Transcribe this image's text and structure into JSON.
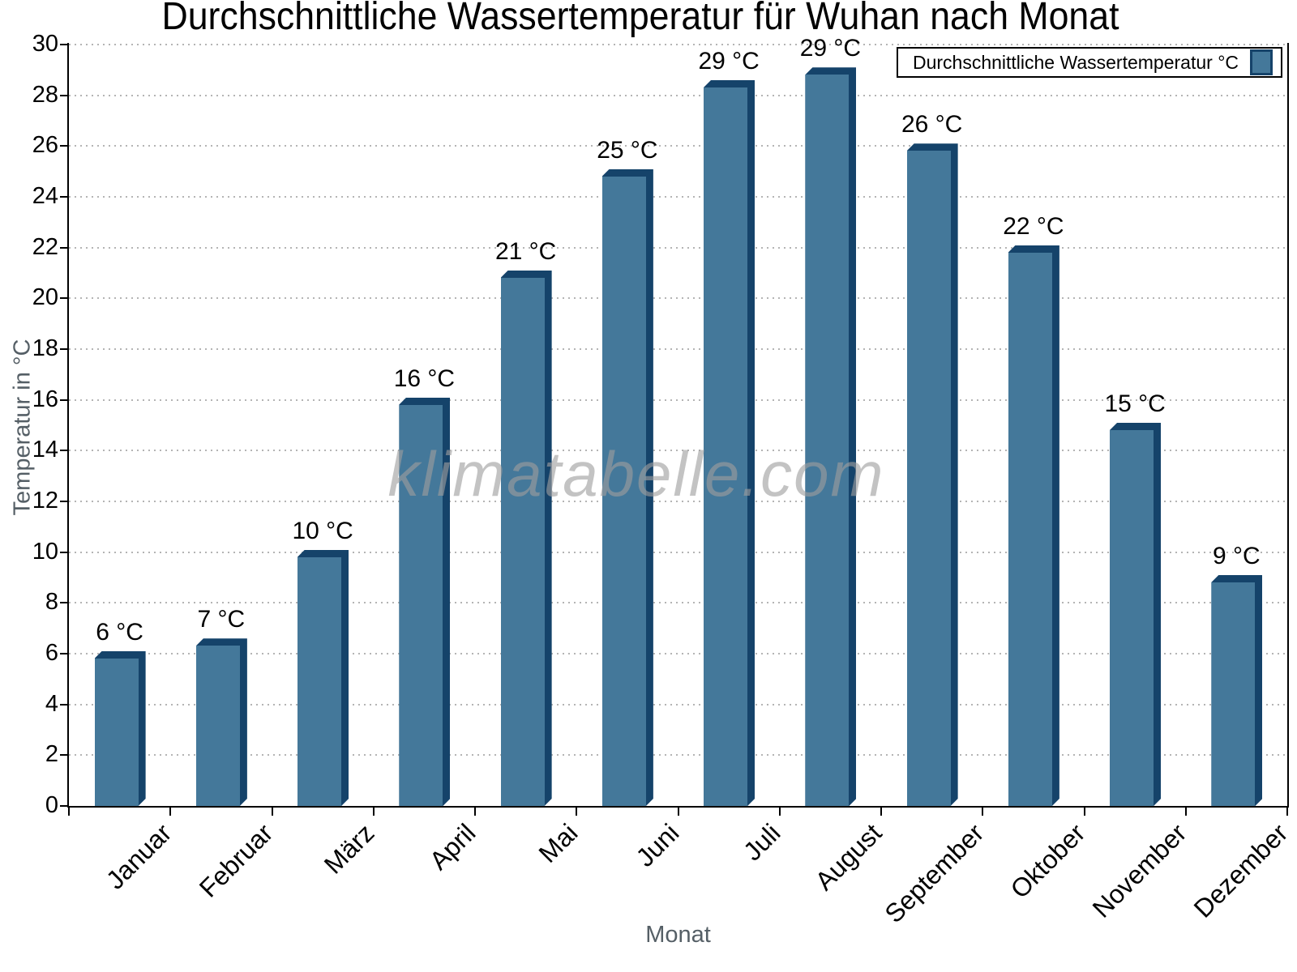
{
  "title": "Durchschnittliche Wassertemperatur für Wuhan nach Monat",
  "watermark": "klimatabelle.com",
  "legend": {
    "label": "Durchschnittliche Wassertemperatur °C",
    "position": "top-right"
  },
  "colors": {
    "bar_face": "#44789A",
    "bar_edge_dark": "#15436A",
    "grid": "#b4b4b4",
    "axis": "#000000",
    "axis_title_text": "#555f66",
    "tick_text": "#000000",
    "watermark_text": "#9e9e9e"
  },
  "chart_data": {
    "type": "bar",
    "title": "Durchschnittliche Wassertemperatur für Wuhan nach Monat",
    "xlabel": "Monat",
    "ylabel": "Temperatur in °C",
    "categories": [
      "Januar",
      "Februar",
      "März",
      "April",
      "Mai",
      "Juni",
      "Juli",
      "August",
      "September",
      "Oktober",
      "November",
      "Dezember"
    ],
    "series": [
      {
        "name": "Durchschnittliche Wassertemperatur °C",
        "values": [
          6.1,
          6.6,
          10.1,
          16.1,
          21.1,
          25.1,
          28.6,
          29.1,
          26.1,
          22.1,
          15.1,
          9.1
        ],
        "data_labels": [
          "6 °C",
          "7 °C",
          "10 °C",
          "16 °C",
          "21 °C",
          "25 °C",
          "29 °C",
          "29 °C",
          "26 °C",
          "22 °C",
          "15 °C",
          "9 °C"
        ]
      }
    ],
    "ylim": [
      0,
      30
    ],
    "ytick_step": 2,
    "yticks": [
      0,
      2,
      4,
      6,
      8,
      10,
      12,
      14,
      16,
      18,
      20,
      22,
      24,
      26,
      28,
      30
    ],
    "grid": "horizontal-dotted",
    "legend_position": "top-right",
    "bar_style": "pseudo-3d"
  }
}
